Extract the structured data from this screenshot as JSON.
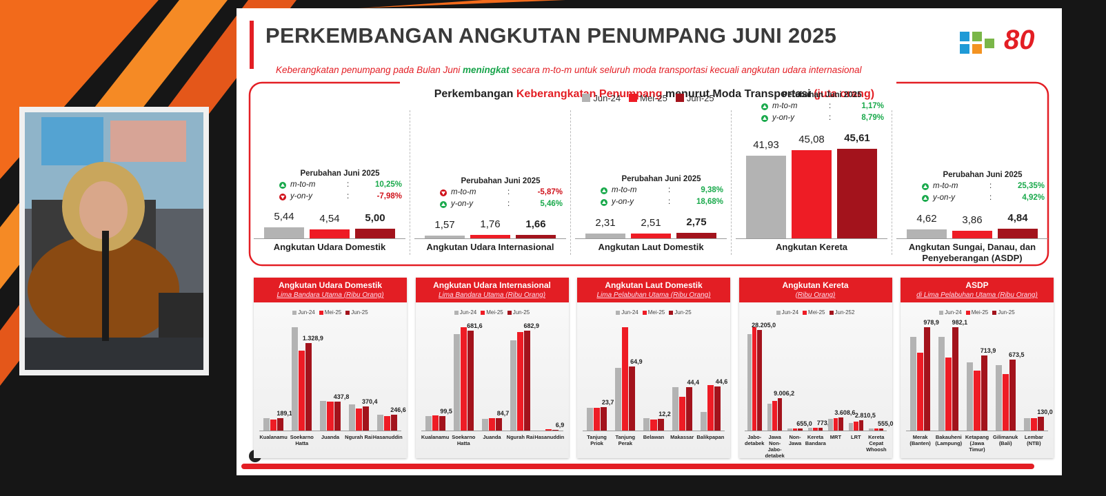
{
  "header": {
    "title": "PERKEMBANGAN ANGKUTAN PENUMPANG JUNI 2025",
    "subtitle": [
      "Keberangkatan penumpang pada Bulan Juni ",
      "meningkat",
      " secara m-to-m untuk seluruh moda transportasi kecuali angkutan udara internasional"
    ],
    "badge": "80"
  },
  "panel": {
    "title": [
      "Perkembangan ",
      "Keberangkatan Penumpang",
      " menurut Moda Transportasi ",
      "(juta orang)"
    ],
    "legend": [
      {
        "name": "Jun-24",
        "color": "#b3b3b3"
      },
      {
        "name": "Mei-25",
        "color": "#ee1c25"
      },
      {
        "name": "Jun-25",
        "color": "#a3131c"
      }
    ]
  },
  "chart_data": [
    {
      "type": "bar",
      "title": "Angkutan Udara Domestik",
      "values": [
        5.44,
        4.54,
        5.0
      ],
      "value_labels": [
        "5,44",
        "4,54",
        "5,00"
      ],
      "change": {
        "heading": "Perubahan Juni 2025",
        "separator": ":",
        "rows": [
          {
            "label": "m-to-m",
            "value": "10,25%",
            "direction": "up"
          },
          {
            "label": "y-on-y",
            "value": "-7,98%",
            "direction": "down"
          }
        ]
      }
    },
    {
      "type": "bar",
      "title": "Angkutan Udara Internasional",
      "values": [
        1.57,
        1.76,
        1.66
      ],
      "value_labels": [
        "1,57",
        "1,76",
        "1,66"
      ],
      "change": {
        "heading": "Perubahan Juni 2025",
        "separator": ":",
        "rows": [
          {
            "label": "m-to-m",
            "value": "-5,87%",
            "direction": "down"
          },
          {
            "label": "y-on-y",
            "value": "5,46%",
            "direction": "up"
          }
        ]
      }
    },
    {
      "type": "bar",
      "title": "Angkutan Laut Domestik",
      "values": [
        2.31,
        2.51,
        2.75
      ],
      "value_labels": [
        "2,31",
        "2,51",
        "2,75"
      ],
      "change": {
        "heading": "Perubahan Juni 2025",
        "separator": ":",
        "rows": [
          {
            "label": "m-to-m",
            "value": "9,38%",
            "direction": "up"
          },
          {
            "label": "y-on-y",
            "value": "18,68%",
            "direction": "up"
          }
        ]
      }
    },
    {
      "type": "bar",
      "title": "Angkutan Kereta",
      "values": [
        41.93,
        45.08,
        45.61
      ],
      "value_labels": [
        "41,93",
        "45,08",
        "45,61"
      ],
      "change": {
        "heading": "Perubahan Juni 2025",
        "separator": ":",
        "rows": [
          {
            "label": "m-to-m",
            "value": "1,17%",
            "direction": "up"
          },
          {
            "label": "y-on-y",
            "value": "8,79%",
            "direction": "up"
          }
        ]
      }
    },
    {
      "type": "bar",
      "title": "Angkutan Sungai, Danau, dan Penyeberangan (ASDP)",
      "values": [
        4.62,
        3.86,
        4.84
      ],
      "value_labels": [
        "4,62",
        "3,86",
        "4,84"
      ],
      "change": {
        "heading": "Perubahan Juni 2025",
        "separator": ":",
        "rows": [
          {
            "label": "m-to-m",
            "value": "25,35%",
            "direction": "up"
          },
          {
            "label": "y-on-y",
            "value": "4,92%",
            "direction": "up"
          }
        ]
      }
    },
    {
      "type": "grouped_bar",
      "title": "Angkutan Udara Domestik",
      "subtitle": "Lima Bandara Utama (Ribu Orang)",
      "categories": [
        "Kualanamu",
        "Soekarno Hatta",
        "Juanda",
        "Ngurah Rai",
        "Hasanuddin"
      ],
      "series": [
        {
          "name": "Jun-24",
          "color": "#b3b3b3",
          "values": [
            191,
            1575,
            448,
            395,
            245
          ]
        },
        {
          "name": "Mei-25",
          "color": "#ee1c25",
          "values": [
            170,
            1215,
            437,
            340,
            225
          ]
        },
        {
          "name": "Jun-25",
          "color": "#a3131c",
          "values": [
            189.1,
            1328.9,
            437.8,
            370.4,
            246.6
          ],
          "value_labels": [
            "189,1",
            "1.328,9",
            "437,8",
            "370,4",
            "246,6"
          ]
        }
      ]
    },
    {
      "type": "grouped_bar",
      "title": "Angkutan Udara Internasional",
      "subtitle": "Lima Bandara Utama (Ribu Orang)",
      "categories": [
        "Kualanamu",
        "Soekarno Hatta",
        "Juanda",
        "Ngurah Rai",
        "Hasanuddin"
      ],
      "series": [
        {
          "name": "Jun-24",
          "color": "#b3b3b3",
          "values": [
            100,
            660,
            80,
            615,
            0.5
          ]
        },
        {
          "name": "Mei-25",
          "color": "#ee1c25",
          "values": [
            105,
            705,
            83,
            670,
            8
          ]
        },
        {
          "name": "Jun-25",
          "color": "#a3131c",
          "values": [
            99.5,
            681.6,
            84.7,
            682.9,
            6.9
          ],
          "value_labels": [
            "99,5",
            "681,6",
            "84,7",
            "682,9",
            "6,9"
          ]
        }
      ]
    },
    {
      "type": "grouped_bar",
      "title": "Angkutan Laut Domestik",
      "subtitle": "Lima Pelabuhan Utama (Ribu Orang)",
      "categories": [
        "Tanjung Priok",
        "Tanjung Perak",
        "Belawan",
        "Makassar",
        "Balikpapan"
      ],
      "series": [
        {
          "name": "Jun-24",
          "color": "#b3b3b3",
          "values": [
            23.3,
            63.5,
            12.4,
            44,
            19
          ]
        },
        {
          "name": "Mei-25",
          "color": "#ee1c25",
          "values": [
            23.3,
            105,
            11,
            34,
            46
          ]
        },
        {
          "name": "Jun-25",
          "color": "#a3131c",
          "values": [
            23.7,
            64.9,
            12.2,
            44.4,
            44.6
          ],
          "value_labels": [
            "23,7",
            "64,9",
            "12,2",
            "44,4",
            "44,6"
          ]
        }
      ]
    },
    {
      "type": "grouped_bar",
      "title": "Angkutan Kereta",
      "subtitle": "(Ribu Orang)",
      "categories": [
        "Jabo-detabek",
        "Jawa Non-Jabo-detabek",
        "Non-Jawa",
        "Kereta Bandara",
        "MRT",
        "LRT",
        "Kereta Cepat Whoosh"
      ],
      "series": [
        {
          "name": "Jun-24",
          "color": "#b3b3b3",
          "values": [
            27070,
            7520,
            560,
            700,
            3200,
            2100,
            500
          ]
        },
        {
          "name": "Mei-25",
          "color": "#ee1c25",
          "values": [
            28950,
            8270,
            620,
            740,
            3500,
            2600,
            540
          ]
        },
        {
          "name": "Jun-252",
          "color": "#a3131c",
          "values": [
            28205.0,
            9006.2,
            655.0,
            773.3,
            3608.6,
            2810.5,
            555.0
          ],
          "value_labels": [
            "28.205,0",
            "9.006,2",
            "655,0",
            "773,3",
            "3.608,6",
            "2.810,5",
            "555,0"
          ]
        }
      ]
    },
    {
      "type": "grouped_bar",
      "title": "ASDP",
      "subtitle": "di Lima Pelabuhan Utama (Ribu Orang)",
      "categories": [
        "Merak (Banten)",
        "Bakauheni (Lampung)",
        "Ketapang (Jawa Timur)",
        "Gilimanuk (Bali)",
        "Lembar (NTB)"
      ],
      "series": [
        {
          "name": "Jun-24",
          "color": "#b3b3b3",
          "values": [
            890,
            890,
            650,
            625,
            117
          ]
        },
        {
          "name": "Mei-25",
          "color": "#ee1c25",
          "values": [
            740,
            695,
            570,
            540,
            117
          ]
        },
        {
          "name": "Jun-25",
          "color": "#a3131c",
          "values": [
            978.9,
            982.1,
            713.9,
            673.5,
            130.0
          ],
          "value_labels": [
            "978,9",
            "982,1",
            "713,9",
            "673,5",
            "130,0"
          ]
        }
      ]
    }
  ]
}
